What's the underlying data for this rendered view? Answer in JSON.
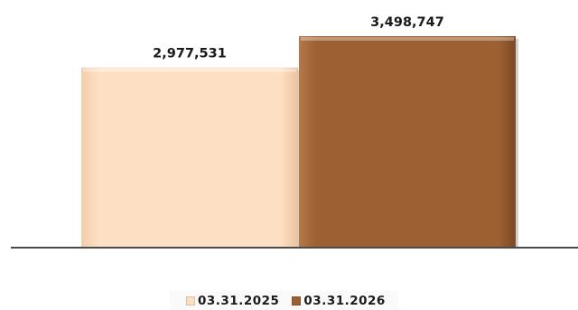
{
  "chart_data": {
    "type": "bar",
    "categories": [
      "03.31.2025",
      "03.31.2026"
    ],
    "values": [
      2977531,
      3498747
    ],
    "value_labels": [
      "2,977,531",
      "3,498,747"
    ],
    "series": [
      {
        "name": "03.31.2025",
        "value": 2977531,
        "color": "#fde0c4"
      },
      {
        "name": "03.31.2026",
        "value": 3498747,
        "color": "#9c6033"
      }
    ],
    "title": "",
    "xlabel": "",
    "ylabel": "",
    "grid": false,
    "legend_position": "bottom"
  },
  "legend": {
    "items": [
      {
        "label": "03.31.2025",
        "color": "#fde0c4"
      },
      {
        "label": "03.31.2026",
        "color": "#9c6033"
      }
    ]
  },
  "colors": {
    "axis": "#4a4a4a",
    "bar_2025": "#fde0c4",
    "bar_2026": "#9c6033"
  }
}
